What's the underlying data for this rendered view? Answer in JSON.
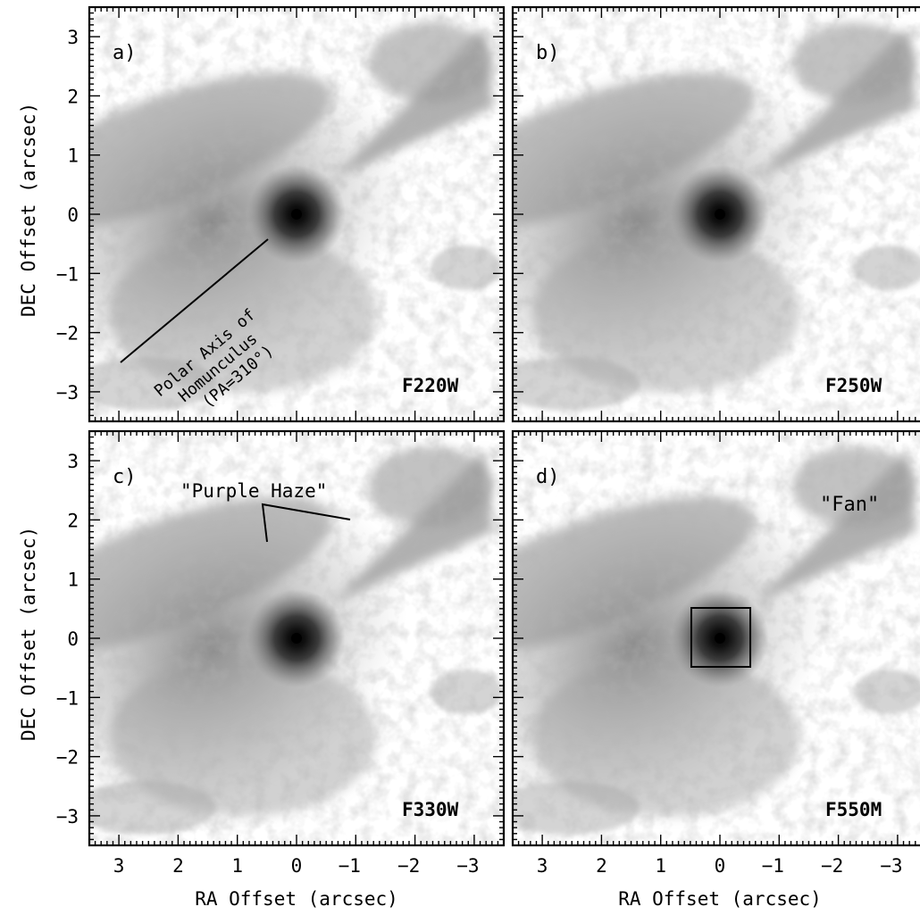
{
  "figure": {
    "axis_labels": {
      "y": "DEC Offset (arcsec)",
      "x": "RA Offset (arcsec)"
    },
    "tick_values": [
      3,
      2,
      1,
      0,
      -1,
      -2,
      -3
    ],
    "tick_labels": [
      "3",
      "2",
      "1",
      "0",
      "−1",
      "−2",
      "−3"
    ],
    "axis_range_arcsec": [
      3.5,
      -3.5
    ],
    "panels": [
      {
        "id": "a",
        "label": "a)",
        "filter": "F220W"
      },
      {
        "id": "b",
        "label": "b)",
        "filter": "F250W"
      },
      {
        "id": "c",
        "label": "c)",
        "filter": "F330W"
      },
      {
        "id": "d",
        "label": "d)",
        "filter": "F550M"
      }
    ],
    "annotations": {
      "polar_axis": [
        "Polar Axis of",
        "Homunculus",
        "(PA=310°)"
      ],
      "purple_haze": "\"Purple Haze\"",
      "fan": "\"Fan\""
    },
    "colors": {
      "frame": "#000000",
      "background": "#ffffff",
      "nebula_dark": "#111111",
      "nebula_mid": "#7a7a7a",
      "nebula_light": "#d9d9d9"
    }
  }
}
